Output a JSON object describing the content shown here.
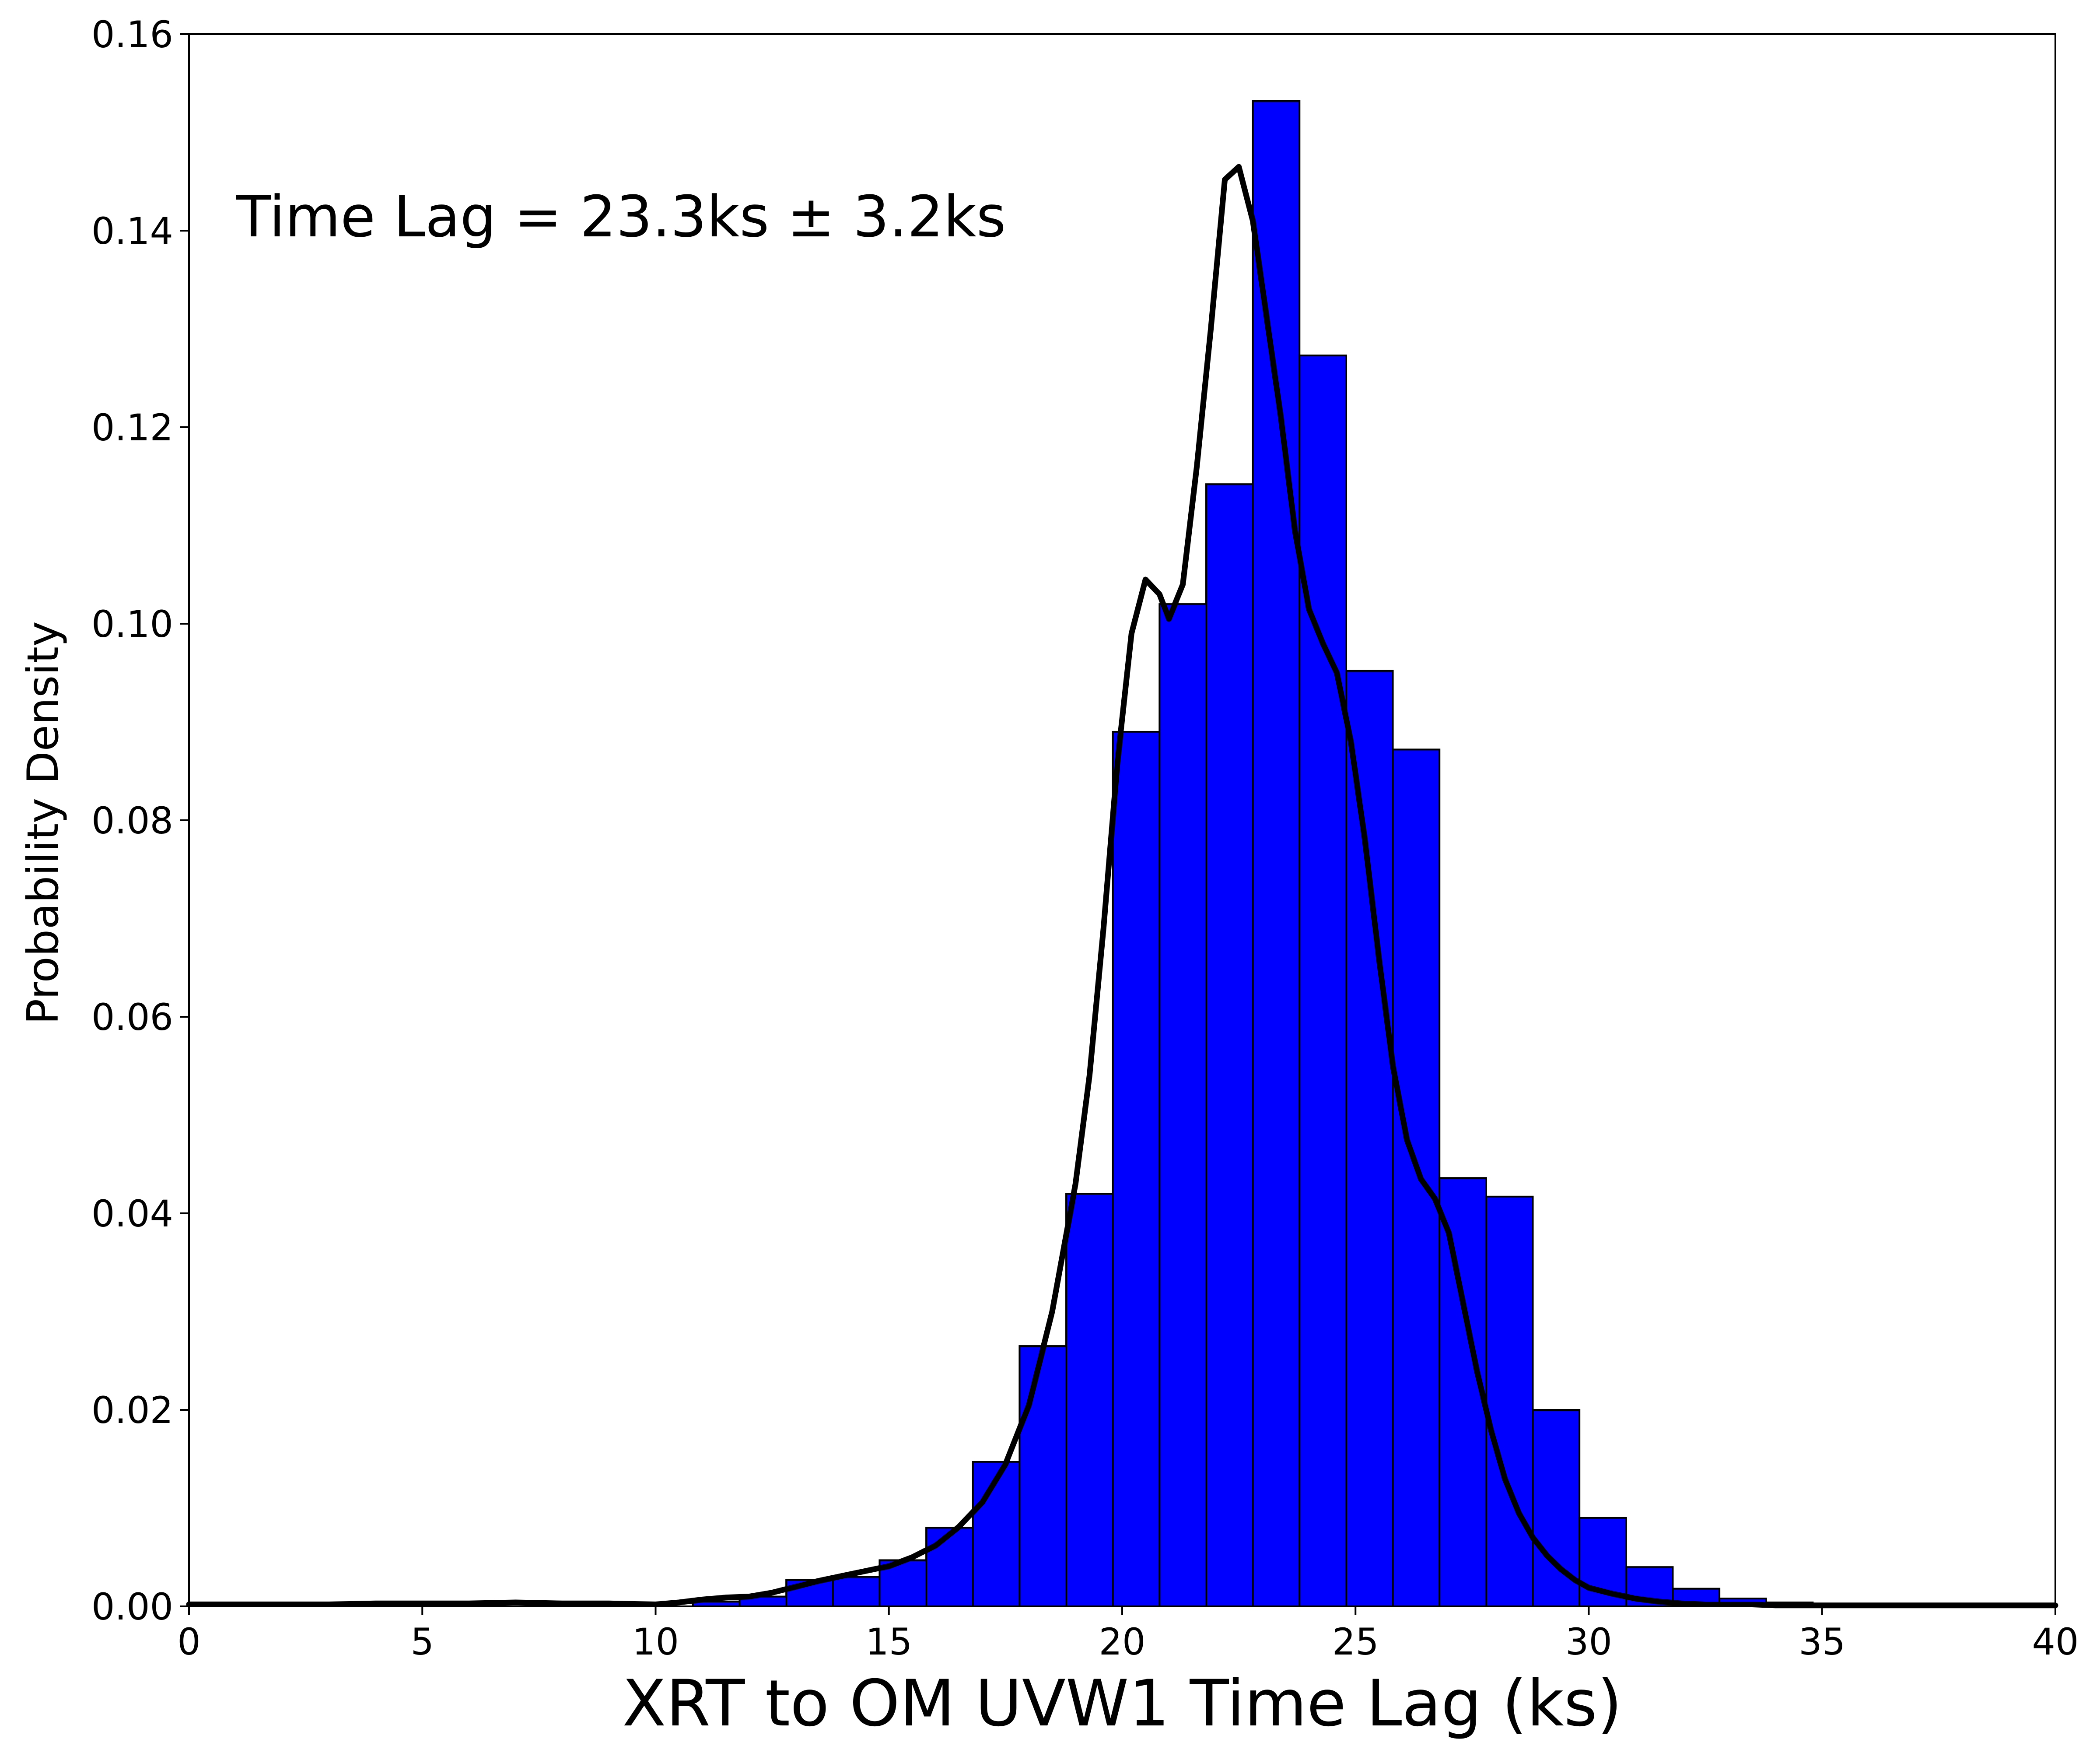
{
  "chart_data": {
    "type": "bar",
    "title": "",
    "xlabel": "XRT to OM UVW1 Time Lag (ks)",
    "ylabel": "Probability Density",
    "xlim": [
      0,
      40
    ],
    "ylim": [
      0,
      0.16
    ],
    "xticks": [
      "0",
      "5",
      "10",
      "15",
      "20",
      "25",
      "30",
      "35",
      "40"
    ],
    "yticks": [
      "0.00",
      "0.02",
      "0.04",
      "0.06",
      "0.08",
      "0.10",
      "0.12",
      "0.14",
      "0.16"
    ],
    "annotation": "Time Lag = 23.3ks ± 3.2ks",
    "grid": false,
    "bar_color": "#0000ff",
    "bar_edge_color": "#000000",
    "curve_color": "#000000",
    "histogram": {
      "bins": [
        {
          "x0": 10.8,
          "x1": 11.8,
          "value": 0.0005
        },
        {
          "x0": 11.8,
          "x1": 12.8,
          "value": 0.001
        },
        {
          "x0": 12.8,
          "x1": 13.8,
          "value": 0.0027
        },
        {
          "x0": 13.8,
          "x1": 14.8,
          "value": 0.003
        },
        {
          "x0": 14.8,
          "x1": 15.8,
          "value": 0.0047
        },
        {
          "x0": 15.8,
          "x1": 16.8,
          "value": 0.008
        },
        {
          "x0": 16.8,
          "x1": 17.8,
          "value": 0.0147
        },
        {
          "x0": 17.8,
          "x1": 18.8,
          "value": 0.0265
        },
        {
          "x0": 18.8,
          "x1": 19.8,
          "value": 0.042
        },
        {
          "x0": 19.8,
          "x1": 20.8,
          "value": 0.089
        },
        {
          "x0": 20.8,
          "x1": 21.8,
          "value": 0.102
        },
        {
          "x0": 21.8,
          "x1": 22.8,
          "value": 0.1142
        },
        {
          "x0": 22.8,
          "x1": 23.8,
          "value": 0.1532
        },
        {
          "x0": 23.8,
          "x1": 24.8,
          "value": 0.1273
        },
        {
          "x0": 24.8,
          "x1": 25.8,
          "value": 0.0952
        },
        {
          "x0": 25.8,
          "x1": 26.8,
          "value": 0.0872
        },
        {
          "x0": 26.8,
          "x1": 27.8,
          "value": 0.0436
        },
        {
          "x0": 27.8,
          "x1": 28.8,
          "value": 0.0417
        },
        {
          "x0": 28.8,
          "x1": 29.8,
          "value": 0.02
        },
        {
          "x0": 29.8,
          "x1": 30.8,
          "value": 0.009
        },
        {
          "x0": 30.8,
          "x1": 31.8,
          "value": 0.004
        },
        {
          "x0": 31.8,
          "x1": 32.8,
          "value": 0.0018
        },
        {
          "x0": 32.8,
          "x1": 33.8,
          "value": 0.0008
        },
        {
          "x0": 33.8,
          "x1": 34.8,
          "value": 0.0004
        }
      ]
    },
    "kde_curve": {
      "x": [
        0,
        1,
        2,
        3,
        4,
        5,
        6,
        7,
        8,
        9,
        10,
        10.5,
        11,
        11.5,
        12,
        12.5,
        13,
        13.5,
        14,
        14.5,
        15,
        15.5,
        16,
        16.5,
        17,
        17.5,
        18,
        18.5,
        19,
        19.3,
        19.6,
        19.9,
        20.2,
        20.5,
        20.8,
        21.0,
        21.3,
        21.6,
        21.9,
        22.2,
        22.5,
        22.8,
        23.1,
        23.4,
        23.7,
        24.0,
        24.3,
        24.6,
        24.9,
        25.2,
        25.5,
        25.8,
        26.1,
        26.4,
        26.7,
        27.0,
        27.3,
        27.6,
        27.9,
        28.2,
        28.5,
        28.8,
        29.1,
        29.4,
        29.7,
        30.0,
        30.5,
        31.0,
        31.5,
        32.0,
        32.5,
        33.0,
        33.5,
        34.0,
        35.0,
        36.0,
        37.0,
        38.0,
        39.0,
        40.0
      ],
      "y": [
        0.0002,
        0.0002,
        0.0002,
        0.0002,
        0.0003,
        0.0003,
        0.0003,
        0.0004,
        0.0003,
        0.0003,
        0.0002,
        0.0004,
        0.0007,
        0.0009,
        0.001,
        0.0014,
        0.002,
        0.0026,
        0.0031,
        0.0036,
        0.0041,
        0.005,
        0.0062,
        0.0081,
        0.0106,
        0.0145,
        0.0205,
        0.03,
        0.043,
        0.054,
        0.069,
        0.086,
        0.099,
        0.1045,
        0.103,
        0.1005,
        0.104,
        0.116,
        0.13,
        0.1452,
        0.1465,
        0.141,
        0.131,
        0.121,
        0.1095,
        0.1015,
        0.098,
        0.095,
        0.088,
        0.078,
        0.066,
        0.055,
        0.0475,
        0.0435,
        0.0415,
        0.038,
        0.031,
        0.024,
        0.018,
        0.013,
        0.0095,
        0.007,
        0.0052,
        0.0038,
        0.0027,
        0.0019,
        0.0013,
        0.0008,
        0.0005,
        0.0003,
        0.0002,
        0.0002,
        0.0002,
        0.0001,
        0.0001,
        0.0001,
        0.0001,
        0.0001,
        0.0001,
        0.0001
      ]
    }
  }
}
